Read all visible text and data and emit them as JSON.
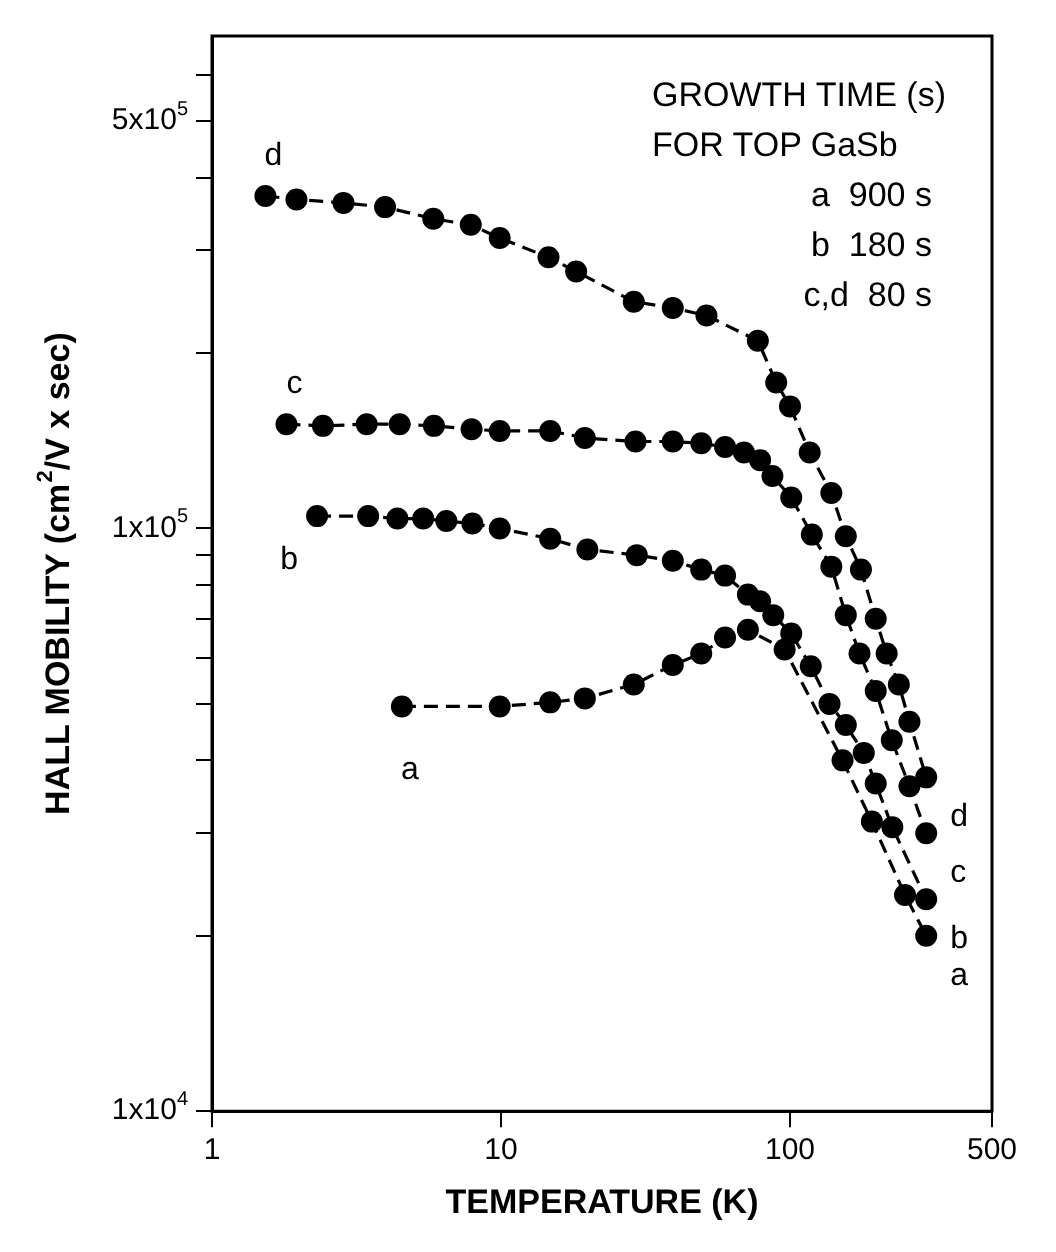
{
  "chart_data": {
    "type": "line",
    "xlabel": "TEMPERATURE (K)",
    "ylabel": "HALL MOBILITY (cm$^{2}$/V x sec)",
    "log": "xy",
    "xlim": [
      1,
      500
    ],
    "ylim": [
      10000,
      700000
    ],
    "xticks": [
      1,
      10,
      100,
      500
    ],
    "yticks": [
      {
        "value": 10000,
        "label": "1x10$^{4}$"
      },
      {
        "value": 20000,
        "label": null
      },
      {
        "value": 30000,
        "label": null
      },
      {
        "value": 40000,
        "label": null
      },
      {
        "value": 50000,
        "label": null
      },
      {
        "value": 60000,
        "label": null
      },
      {
        "value": 70000,
        "label": null
      },
      {
        "value": 80000,
        "label": null
      },
      {
        "value": 90000,
        "label": null
      },
      {
        "value": 100000,
        "label": "1x10$^{5}$"
      },
      {
        "value": 200000,
        "label": null
      },
      {
        "value": 300000,
        "label": null
      },
      {
        "value": 400000,
        "label": null
      },
      {
        "value": 500000,
        "label": "5x10$^{5}$"
      },
      {
        "value": 600000,
        "label": null
      }
    ],
    "grid": false,
    "legend": false,
    "marker": "circle",
    "line_style": "dashed",
    "annotations": [
      "GROWTH TIME (s)",
      "FOR TOP GaSb",
      "a  900 s",
      "b  180 s",
      "c,d  80 s"
    ],
    "series": [
      {
        "name": "d",
        "color": "#000000",
        "x": [
          1.53,
          1.96,
          2.85,
          3.97,
          5.83,
          7.86,
          9.9,
          14.6,
          18.2,
          28.8,
          39.3,
          51.4,
          77.4,
          89.6,
          100,
          117,
          139,
          156,
          176,
          198,
          216,
          238,
          259,
          296
        ],
        "values": [
          372000,
          367000,
          362000,
          356000,
          340000,
          332000,
          315000,
          292000,
          276000,
          245000,
          239000,
          232000,
          210000,
          178000,
          162000,
          135000,
          115000,
          97000,
          85000,
          70000,
          61000,
          54000,
          46600,
          37400
        ]
      },
      {
        "name": "c",
        "color": "#000000",
        "x": [
          1.81,
          2.42,
          3.43,
          4.46,
          5.86,
          7.91,
          9.9,
          14.8,
          19.5,
          29.2,
          39.3,
          49.3,
          59.6,
          69.3,
          78.8,
          86.9,
          101,
          119,
          139,
          156,
          174,
          198,
          225,
          259,
          296
        ],
        "values": [
          151000,
          150000,
          151000,
          151000,
          150000,
          148000,
          147000,
          147000,
          143000,
          141000,
          141000,
          140000,
          138000,
          135000,
          131000,
          123000,
          113000,
          97600,
          86000,
          71000,
          61000,
          52600,
          43300,
          36100,
          30000
        ]
      },
      {
        "name": "b",
        "color": "#000000",
        "x": [
          2.31,
          3.47,
          4.38,
          5.38,
          6.47,
          7.96,
          9.9,
          14.8,
          19.9,
          29.5,
          39.3,
          49.3,
          59.6,
          71.5,
          78.8,
          87.5,
          101,
          118,
          137,
          156,
          180,
          198,
          226,
          296
        ],
        "values": [
          105000,
          105000,
          104000,
          104000,
          103000,
          102000,
          100000,
          96000,
          92000,
          90000,
          88000,
          85000,
          83000,
          77000,
          75000,
          71000,
          66000,
          58000,
          50000,
          46000,
          41200,
          36500,
          30700,
          23100
        ]
      },
      {
        "name": "a",
        "color": "#000000",
        "x": [
          4.54,
          9.9,
          14.8,
          19.5,
          28.8,
          39.3,
          49.3,
          59.6,
          71.5,
          95.8,
          152,
          192,
          250,
          296
        ],
        "values": [
          49500,
          49500,
          50300,
          51100,
          54000,
          58300,
          61000,
          65000,
          67000,
          62000,
          40000,
          31400,
          23500,
          20000
        ]
      }
    ]
  }
}
